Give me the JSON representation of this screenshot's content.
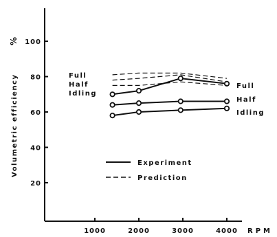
{
  "chart_data": {
    "type": "line",
    "title": "",
    "xlabel": "RPM",
    "ylabel": "Volumetric efficiency",
    "yunit": "%",
    "xlim": [
      0,
      4500
    ],
    "ylim": [
      0,
      110
    ],
    "xticks": [
      "1000",
      "2000",
      "3000",
      "4000"
    ],
    "yticks": [
      "20",
      "40",
      "60",
      "80",
      "100"
    ],
    "grid": false,
    "legend": {
      "position": "center",
      "entries": [
        {
          "label": "Experiment",
          "style": "solid"
        },
        {
          "label": "Prediction",
          "style": "dashed"
        }
      ]
    },
    "left_labels": [
      "Full",
      "Half",
      "Idling"
    ],
    "series": [
      {
        "name": "Full",
        "kind": "Experiment",
        "x": [
          1400,
          2000,
          2950,
          4000
        ],
        "y": [
          70,
          72,
          79,
          76
        ]
      },
      {
        "name": "Half",
        "kind": "Experiment",
        "x": [
          1400,
          2000,
          2950,
          4000
        ],
        "y": [
          64,
          65,
          66,
          66
        ]
      },
      {
        "name": "Idling",
        "kind": "Experiment",
        "x": [
          1400,
          2000,
          2950,
          4000
        ],
        "y": [
          58,
          60,
          61,
          62
        ]
      },
      {
        "name": "Full",
        "kind": "Prediction",
        "x": [
          1400,
          2000,
          2950,
          4000
        ],
        "y": [
          81,
          82,
          82,
          79
        ]
      },
      {
        "name": "Half",
        "kind": "Prediction",
        "x": [
          1400,
          2000,
          2950,
          4000
        ],
        "y": [
          78,
          79,
          81,
          77
        ]
      },
      {
        "name": "Idling",
        "kind": "Prediction",
        "x": [
          1400,
          2000,
          2950,
          4000
        ],
        "y": [
          75,
          75,
          77,
          75
        ]
      }
    ]
  }
}
